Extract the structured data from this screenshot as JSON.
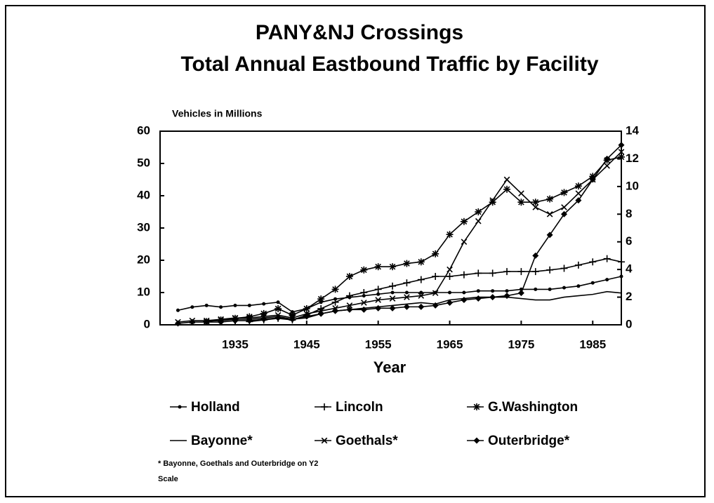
{
  "chart_data": {
    "type": "line",
    "title": "PANY&NJ Crossings",
    "subtitle": "Total Annual Eastbound Traffic by Facility",
    "y_label": "Vehicles in Millions",
    "x_label": "Year",
    "note": "* Bayonne, Goethals and Outerbridge on Y2 Scale",
    "x": [
      1927,
      1929,
      1931,
      1933,
      1935,
      1937,
      1939,
      1941,
      1943,
      1945,
      1947,
      1949,
      1951,
      1953,
      1955,
      1957,
      1959,
      1961,
      1963,
      1965,
      1967,
      1969,
      1971,
      1973,
      1975,
      1977,
      1979,
      1981,
      1983,
      1985,
      1987,
      1989
    ],
    "xlim": [
      1924.5,
      1989
    ],
    "xticks": [
      1935,
      1945,
      1955,
      1965,
      1975,
      1985
    ],
    "ylim": [
      0,
      60
    ],
    "yticks": [
      0,
      10,
      20,
      30,
      40,
      50,
      60
    ],
    "y2lim": [
      0,
      14
    ],
    "y2ticks": [
      0,
      2,
      4,
      6,
      8,
      10,
      12,
      14
    ],
    "grid": false,
    "series": [
      {
        "name": "Holland",
        "color": "#000000",
        "marker": "dot",
        "values": [
          4.5,
          5.5,
          6,
          5.5,
          6,
          6,
          6.5,
          7,
          4,
          5,
          7,
          8,
          8.5,
          9,
          9.5,
          10,
          10,
          10,
          10,
          10,
          10,
          10.5,
          10.5,
          10.5,
          11,
          11,
          11,
          11.5,
          12,
          13,
          14,
          15
        ]
      },
      {
        "name": "Lincoln",
        "color": "#000000",
        "marker": "plus",
        "values": [
          null,
          null,
          null,
          null,
          null,
          1,
          1.5,
          2,
          1.5,
          3,
          5,
          7,
          9,
          10,
          11,
          12,
          13,
          14,
          15,
          15,
          15.5,
          16,
          16,
          16.5,
          16.5,
          16.5,
          17,
          17.5,
          18.5,
          19.5,
          20.5,
          19.5
        ]
      },
      {
        "name": "G.Washington",
        "color": "#000000",
        "marker": "asterisk",
        "values": [
          null,
          null,
          1,
          1.5,
          2,
          2.5,
          3.5,
          5,
          3,
          5,
          8,
          11,
          15,
          17,
          18,
          18,
          19,
          19.5,
          22,
          28,
          32,
          35,
          38,
          42,
          38,
          38,
          39,
          41,
          43,
          46,
          51,
          52
        ]
      },
      {
        "name": "Bayonne*",
        "color": "#000000",
        "marker": "none",
        "axis": "y2",
        "values": [
          null,
          null,
          0.3,
          0.3,
          0.4,
          0.4,
          0.5,
          0.6,
          0.4,
          0.5,
          0.8,
          1,
          1.1,
          1.2,
          1.3,
          1.4,
          1.5,
          1.6,
          1.5,
          1.8,
          1.9,
          2.0,
          2.0,
          2.0,
          1.9,
          1.8,
          1.8,
          2.0,
          2.1,
          2.2,
          2.4,
          2.3
        ]
      },
      {
        "name": "Goethals*",
        "color": "#000000",
        "marker": "x",
        "axis": "y2",
        "values": [
          0.2,
          0.3,
          0.3,
          0.4,
          0.5,
          0.5,
          0.6,
          0.7,
          0.5,
          0.8,
          1.0,
          1.2,
          1.4,
          1.6,
          1.8,
          1.9,
          2.0,
          2.1,
          2.3,
          4,
          6,
          7.5,
          9,
          10.5,
          9.5,
          8.5,
          8,
          8.5,
          9.5,
          10.5,
          11.5,
          12.5
        ]
      },
      {
        "name": "Outerbridge*",
        "color": "#000000",
        "marker": "diamond",
        "axis": "y2",
        "values": [
          0.1,
          0.2,
          0.2,
          0.2,
          0.3,
          0.3,
          0.4,
          0.5,
          0.4,
          0.6,
          0.8,
          1.0,
          1.1,
          1.1,
          1.2,
          1.2,
          1.3,
          1.3,
          1.4,
          1.6,
          1.8,
          1.9,
          2.0,
          2.1,
          2.3,
          5,
          6.5,
          8,
          9,
          10.5,
          12,
          13
        ]
      }
    ]
  }
}
